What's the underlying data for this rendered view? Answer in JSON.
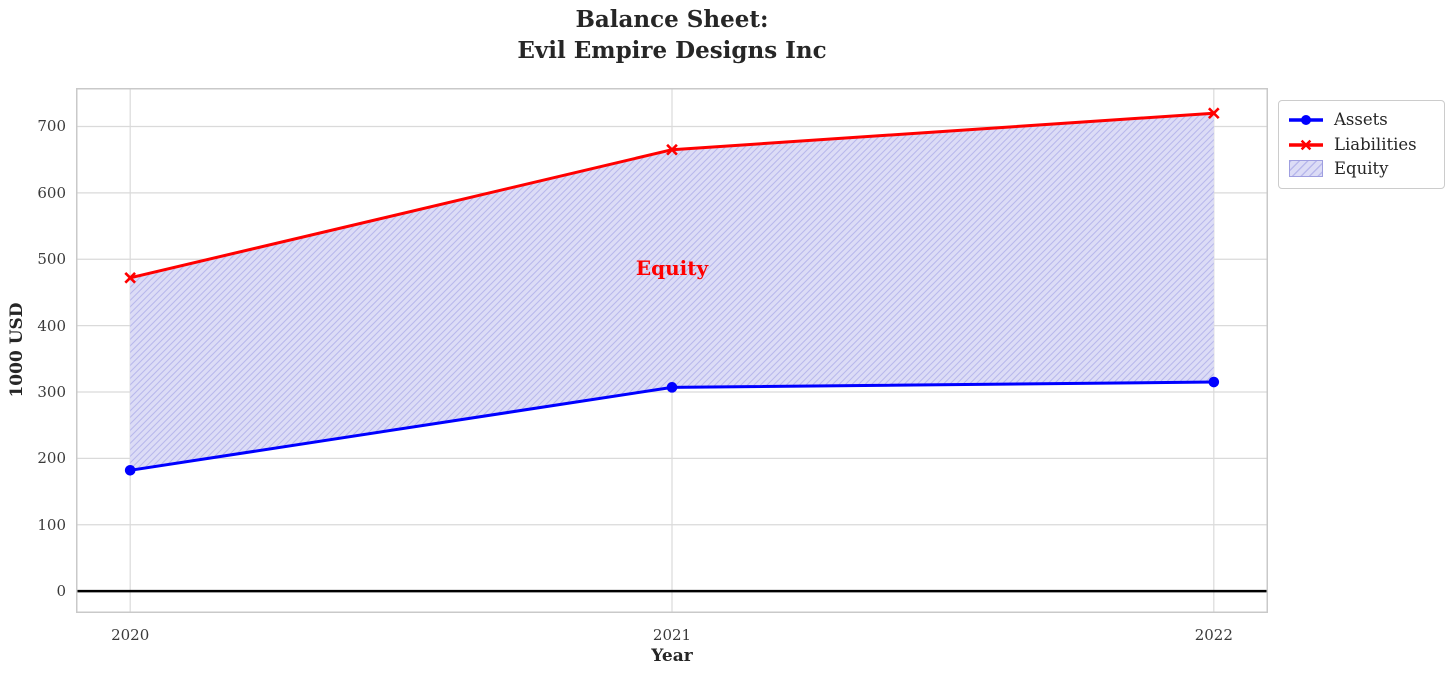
{
  "chart_data": {
    "type": "line",
    "title_lines": [
      "Balance Sheet:",
      "Evil Empire Designs Inc"
    ],
    "xlabel": "Year",
    "ylabel": "1000 USD",
    "x": [
      2020,
      2021,
      2022
    ],
    "xtick_labels": [
      "2020",
      "2021",
      "2022"
    ],
    "yticks": [
      0,
      100,
      200,
      300,
      400,
      500,
      600,
      700
    ],
    "ytick_labels": [
      "0",
      "100",
      "200",
      "300",
      "400",
      "500",
      "600",
      "700"
    ],
    "xlim": [
      2019.9,
      2022.1
    ],
    "ylim": [
      -33,
      758
    ],
    "grid": true,
    "series": [
      {
        "name": "Assets",
        "color": "#0000ff",
        "marker": "circle",
        "line_width": 3,
        "values": [
          182,
          307,
          315
        ]
      },
      {
        "name": "Liabilities",
        "color": "#ff0000",
        "marker": "x",
        "line_width": 3,
        "values": [
          472,
          665,
          720
        ]
      }
    ],
    "fill_between": {
      "name": "Equity",
      "between": [
        "Assets",
        "Liabilities"
      ],
      "band_values": [
        290,
        358,
        405
      ],
      "fill_color": "#dcdcf6",
      "hatch_color": "#b8b8ec",
      "edge_color": "#9f9fe0",
      "hatch": "/"
    },
    "annotation": {
      "text": "Equity",
      "color": "#ff0000",
      "x": 2021,
      "y": 487
    },
    "zero_line": {
      "y": 0,
      "color": "#000000"
    },
    "legend": {
      "position": "upper-right-outside",
      "entries": [
        "Assets",
        "Liabilities",
        "Equity"
      ]
    }
  }
}
